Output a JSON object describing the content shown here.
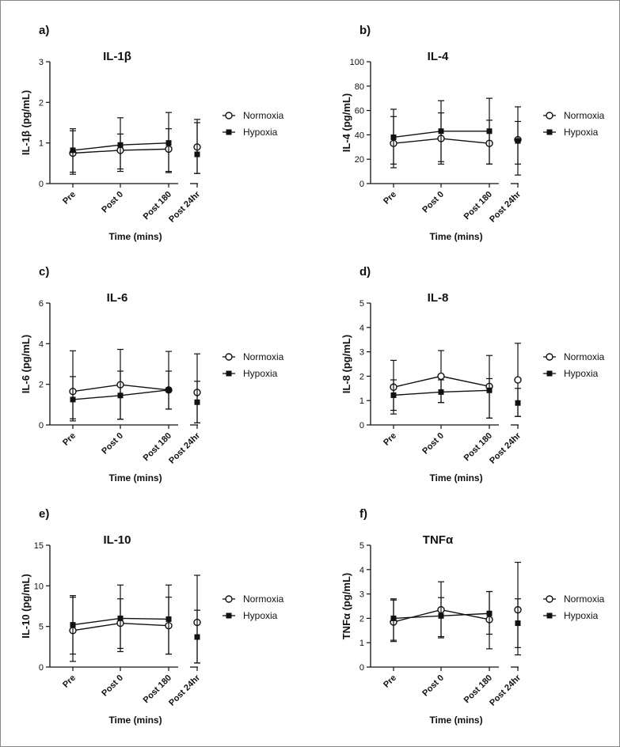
{
  "chart_data": [
    {
      "type": "line",
      "letter": "a)",
      "title": "IL-1β",
      "ylabel": "IL-1β (pg/mL)",
      "xlabel": "Time (mins)",
      "ylim": [
        0,
        3
      ],
      "yticks": [
        "0",
        "1",
        "2",
        "3"
      ],
      "categories": [
        "Pre",
        "Post 0",
        "Post 180",
        "Post 24hr"
      ],
      "series": [
        {
          "name": "Normoxia",
          "marker": "open-circle",
          "values": [
            0.75,
            0.82,
            0.85,
            0.9
          ],
          "err_low": [
            0.28,
            0.36,
            0.3,
            0.25
          ],
          "err_high": [
            1.3,
            1.62,
            1.75,
            1.58
          ]
        },
        {
          "name": "Hypoxia",
          "marker": "filled-square",
          "values": [
            0.82,
            0.95,
            1.0,
            0.72
          ],
          "err_low": [
            0.23,
            0.3,
            0.27,
            0.25
          ],
          "err_high": [
            1.35,
            1.22,
            1.35,
            1.5
          ]
        }
      ]
    },
    {
      "type": "line",
      "letter": "b)",
      "title": "IL-4",
      "ylabel": "IL-4  (pg/mL)",
      "xlabel": "Time (mins)",
      "ylim": [
        0,
        100
      ],
      "yticks": [
        "0",
        "20",
        "40",
        "60",
        "80",
        "100"
      ],
      "categories": [
        "Pre",
        "Post 0",
        "Post 180",
        "Post 24hr"
      ],
      "series": [
        {
          "name": "Normoxia",
          "marker": "open-circle",
          "values": [
            33,
            37,
            33,
            36
          ],
          "err_low": [
            13,
            18,
            16,
            7
          ],
          "err_high": [
            55,
            58,
            52,
            63
          ]
        },
        {
          "name": "Hypoxia",
          "marker": "filled-square",
          "values": [
            38,
            43,
            43,
            35
          ],
          "err_low": [
            16,
            16,
            16,
            16
          ],
          "err_high": [
            61,
            68,
            70,
            51
          ]
        }
      ]
    },
    {
      "type": "line",
      "letter": "c)",
      "title": "IL-6",
      "ylabel": "IL-6  (pg/mL)",
      "xlabel": "Time (mins)",
      "ylim": [
        0,
        6
      ],
      "yticks": [
        "0",
        "2",
        "4",
        "6"
      ],
      "categories": [
        "Pre",
        "Post 0",
        "Post 180",
        "Post 24hr"
      ],
      "series": [
        {
          "name": "Normoxia",
          "marker": "open-circle",
          "values": [
            1.65,
            1.98,
            1.72,
            1.6
          ],
          "err_low": [
            0.2,
            0.28,
            0.78,
            0.1
          ],
          "err_high": [
            3.65,
            3.72,
            3.62,
            3.5
          ]
        },
        {
          "name": "Hypoxia",
          "marker": "filled-square",
          "values": [
            1.25,
            1.45,
            1.72,
            1.12
          ],
          "err_low": [
            0.3,
            0.28,
            0.78,
            0.1
          ],
          "err_high": [
            2.38,
            2.65,
            2.65,
            2.15
          ]
        }
      ]
    },
    {
      "type": "line",
      "letter": "d)",
      "title": "IL-8",
      "ylabel": "IL-8  (pg/mL)",
      "xlabel": "Time (mins)",
      "ylim": [
        0,
        5
      ],
      "yticks": [
        "0",
        "1",
        "2",
        "3",
        "4",
        "5"
      ],
      "categories": [
        "Pre",
        "Post 0",
        "Post 180",
        "Post 24hr"
      ],
      "series": [
        {
          "name": "Normoxia",
          "marker": "open-circle",
          "values": [
            1.55,
            2.0,
            1.58,
            1.85
          ],
          "err_low": [
            0.45,
            0.92,
            0.28,
            0.35
          ],
          "err_high": [
            2.65,
            3.05,
            2.85,
            3.35
          ]
        },
        {
          "name": "Hypoxia",
          "marker": "filled-square",
          "values": [
            1.22,
            1.35,
            1.42,
            0.9
          ],
          "err_low": [
            0.6,
            0.92,
            0.28,
            0.35
          ],
          "err_high": [
            1.85,
            1.85,
            1.9,
            1.5
          ]
        }
      ]
    },
    {
      "type": "line",
      "letter": "e)",
      "title": "IL-10",
      "ylabel": "IL-10  (pg/mL)",
      "xlabel": "Time (mins)",
      "ylim": [
        0,
        15
      ],
      "yticks": [
        "0",
        "5",
        "10",
        "15"
      ],
      "categories": [
        "Pre",
        "Post 0",
        "Post 180",
        "Post 24hr"
      ],
      "series": [
        {
          "name": "Normoxia",
          "marker": "open-circle",
          "values": [
            4.5,
            5.4,
            5.1,
            5.5
          ],
          "err_low": [
            0.7,
            2.3,
            1.6,
            0.5
          ],
          "err_high": [
            8.8,
            10.1,
            10.1,
            11.3
          ]
        },
        {
          "name": "Hypoxia",
          "marker": "filled-square",
          "values": [
            5.2,
            6.0,
            5.9,
            3.7
          ],
          "err_low": [
            1.6,
            1.9,
            1.6,
            0.5
          ],
          "err_high": [
            8.6,
            8.4,
            8.6,
            7.0
          ]
        }
      ]
    },
    {
      "type": "line",
      "letter": "f)",
      "title": "TNFα",
      "ylabel": "TNFα  (pg/mL)",
      "xlabel": "Time (mins)",
      "ylim": [
        0,
        5
      ],
      "yticks": [
        "0",
        "1",
        "2",
        "3",
        "4",
        "5"
      ],
      "categories": [
        "Pre",
        "Post 0",
        "Post 180",
        "Post 24hr"
      ],
      "series": [
        {
          "name": "Normoxia",
          "marker": "open-circle",
          "values": [
            1.85,
            2.35,
            1.95,
            2.35
          ],
          "err_low": [
            1.05,
            1.25,
            0.75,
            0.8
          ],
          "err_high": [
            2.75,
            3.5,
            3.1,
            4.3
          ]
        },
        {
          "name": "Hypoxia",
          "marker": "filled-square",
          "values": [
            2.0,
            2.1,
            2.2,
            1.8
          ],
          "err_low": [
            1.1,
            1.2,
            1.35,
            0.5
          ],
          "err_high": [
            2.8,
            2.85,
            3.1,
            2.8
          ]
        }
      ]
    }
  ]
}
